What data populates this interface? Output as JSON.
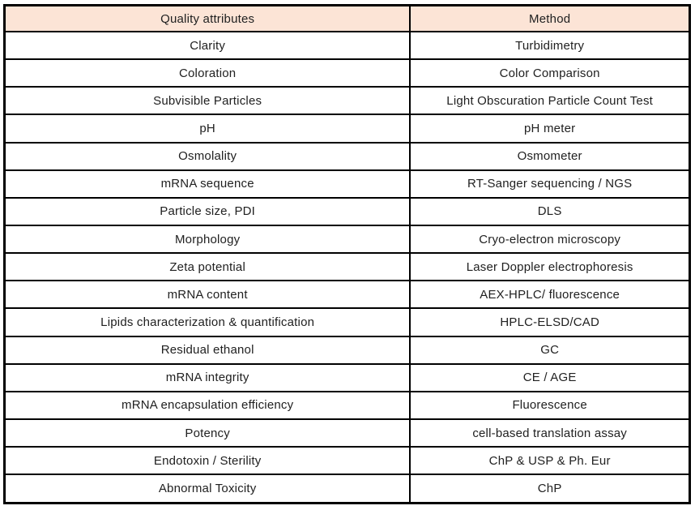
{
  "page": {
    "background": "#ffffff"
  },
  "table": {
    "columns": [
      "Quality attributes",
      "Method"
    ],
    "header_background": "#fce4d6",
    "border_color": "#000000",
    "text_color": "#212121",
    "rows": [
      {
        "quality_attribute": "Clarity",
        "method": "Turbidimetry"
      },
      {
        "quality_attribute": "Coloration",
        "method": "Color Comparison"
      },
      {
        "quality_attribute": "Subvisible Particles",
        "method": "Light Obscuration Particle Count Test"
      },
      {
        "quality_attribute": "pH",
        "method": "pH meter"
      },
      {
        "quality_attribute": "Osmolality",
        "method": "Osmometer"
      },
      {
        "quality_attribute": "mRNA sequence",
        "method": "RT-Sanger sequencing / NGS"
      },
      {
        "quality_attribute": "Particle size, PDI",
        "method": "DLS"
      },
      {
        "quality_attribute": "Morphology",
        "method": "Cryo-electron microscopy"
      },
      {
        "quality_attribute": "Zeta potential",
        "method": "Laser Doppler electrophoresis"
      },
      {
        "quality_attribute": "mRNA content",
        "method": "AEX-HPLC/ fluorescence"
      },
      {
        "quality_attribute": "Lipids characterization & quantification",
        "method": "HPLC-ELSD/CAD"
      },
      {
        "quality_attribute": "Residual ethanol",
        "method": "GC"
      },
      {
        "quality_attribute": "mRNA integrity",
        "method": "CE / AGE"
      },
      {
        "quality_attribute": "mRNA encapsulation efficiency",
        "method": "Fluorescence"
      },
      {
        "quality_attribute": "Potency",
        "method": "cell-based translation assay"
      },
      {
        "quality_attribute": "Endotoxin / Sterility",
        "method": "ChP & USP & Ph. Eur"
      },
      {
        "quality_attribute": "Abnormal Toxicity",
        "method": "ChP"
      }
    ]
  }
}
